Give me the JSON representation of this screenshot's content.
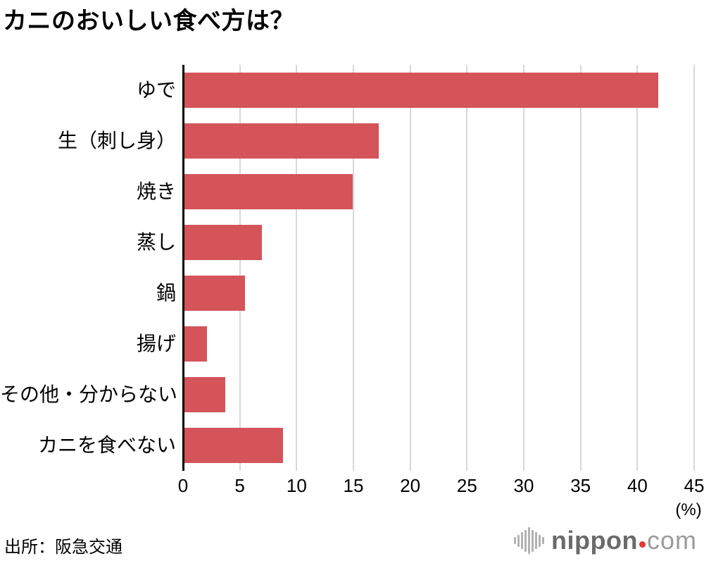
{
  "title": "カニのおいしい食べ方は？",
  "source": "出所：阪急交通",
  "branding": {
    "icon": "soundwave-bars-icon",
    "name": "nippon",
    "tld": "com",
    "name_color": "#6a6a6a",
    "tld_color": "#9b9b9b",
    "dot_color": "#e5372e"
  },
  "chart_data": {
    "type": "bar",
    "orientation": "horizontal",
    "title": "カニのおいしい食べ方は？",
    "categories": [
      "ゆで",
      "生（刺し身）",
      "焼き",
      "蒸し",
      "鍋",
      "揚げ",
      "その他・分からない",
      "カニを食べない"
    ],
    "values": [
      41.7,
      17.1,
      14.8,
      6.8,
      5.3,
      2.0,
      3.6,
      8.7
    ],
    "unit": "%",
    "axis_label": "(%)",
    "xlim": [
      0,
      45
    ],
    "xticks": [
      0,
      5,
      10,
      15,
      20,
      25,
      30,
      35,
      40,
      45
    ],
    "bar_color": "#d45459",
    "grid": true,
    "gridline_color": "#d8d8d8",
    "legend": "none"
  }
}
